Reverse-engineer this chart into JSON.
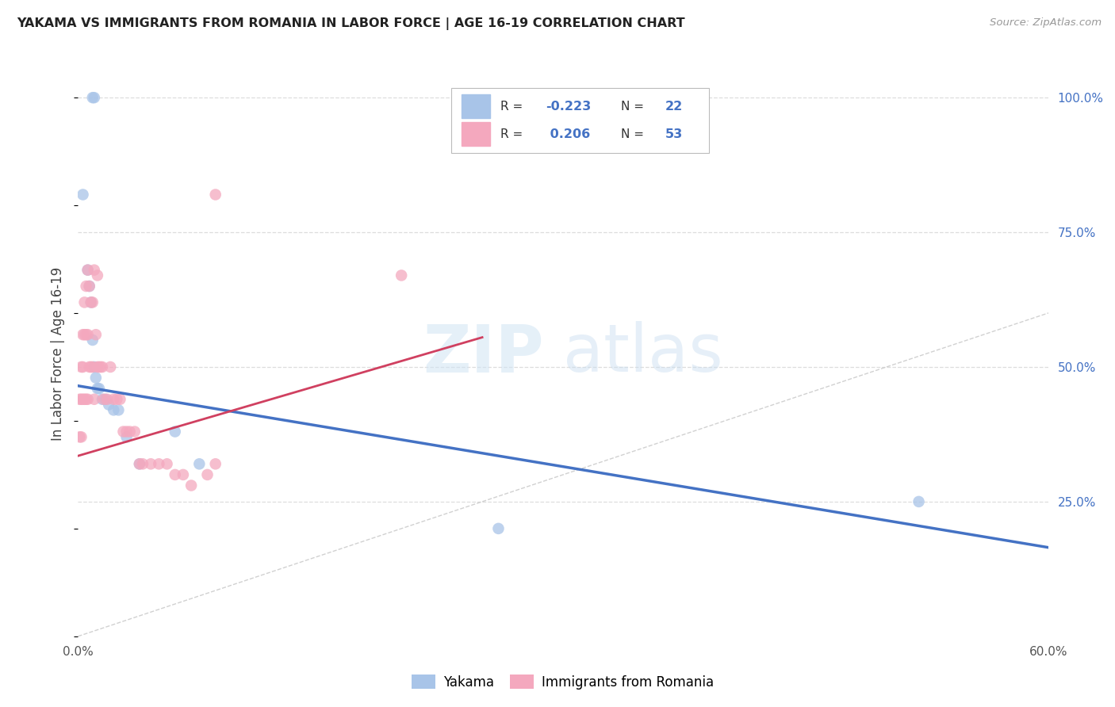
{
  "title": "YAKAMA VS IMMIGRANTS FROM ROMANIA IN LABOR FORCE | AGE 16-19 CORRELATION CHART",
  "source": "Source: ZipAtlas.com",
  "ylabel": "In Labor Force | Age 16-19",
  "xlim": [
    0.0,
    0.6
  ],
  "ylim": [
    0.0,
    1.05
  ],
  "yakama_color": "#a8c4e8",
  "romania_color": "#f4a8be",
  "trendline_yakama_color": "#4472c4",
  "trendline_romania_color": "#d04060",
  "diagonal_color": "#cccccc",
  "background_color": "#ffffff",
  "grid_color": "#dddddd",
  "legend_r1": "-0.223",
  "legend_n1": "22",
  "legend_r2": "0.206",
  "legend_n2": "53",
  "legend_color": "#4472c4",
  "legend_label_color": "#333333",
  "watermark_zip_color": "#c8dcf0",
  "watermark_atlas_color": "#c0d8ec",
  "yakama_x": [
    0.009,
    0.01,
    0.003,
    0.006,
    0.007,
    0.008,
    0.009,
    0.01,
    0.011,
    0.012,
    0.013,
    0.015,
    0.017,
    0.019,
    0.022,
    0.025,
    0.03,
    0.038,
    0.06,
    0.075,
    0.26,
    0.52
  ],
  "yakama_y": [
    1.0,
    1.0,
    0.82,
    0.68,
    0.65,
    0.62,
    0.55,
    0.5,
    0.48,
    0.46,
    0.46,
    0.44,
    0.44,
    0.43,
    0.42,
    0.42,
    0.37,
    0.32,
    0.38,
    0.32,
    0.2,
    0.25
  ],
  "romania_x": [
    0.001,
    0.001,
    0.002,
    0.002,
    0.002,
    0.003,
    0.003,
    0.003,
    0.004,
    0.004,
    0.004,
    0.005,
    0.005,
    0.005,
    0.006,
    0.006,
    0.006,
    0.007,
    0.007,
    0.008,
    0.008,
    0.009,
    0.009,
    0.01,
    0.01,
    0.011,
    0.012,
    0.013,
    0.014,
    0.015,
    0.016,
    0.018,
    0.02,
    0.022,
    0.024,
    0.026,
    0.028,
    0.03,
    0.032,
    0.035,
    0.038,
    0.04,
    0.045,
    0.05,
    0.055,
    0.06,
    0.065,
    0.07,
    0.08,
    0.085,
    0.085,
    0.012,
    0.2
  ],
  "romania_y": [
    0.44,
    0.37,
    0.5,
    0.44,
    0.37,
    0.56,
    0.5,
    0.44,
    0.62,
    0.56,
    0.44,
    0.65,
    0.56,
    0.44,
    0.68,
    0.56,
    0.44,
    0.65,
    0.5,
    0.62,
    0.5,
    0.62,
    0.5,
    0.68,
    0.44,
    0.56,
    0.5,
    0.5,
    0.5,
    0.5,
    0.44,
    0.44,
    0.5,
    0.44,
    0.44,
    0.44,
    0.38,
    0.38,
    0.38,
    0.38,
    0.32,
    0.32,
    0.32,
    0.32,
    0.32,
    0.3,
    0.3,
    0.28,
    0.3,
    0.82,
    0.32,
    0.67,
    0.67
  ],
  "blue_trend_x0": 0.0,
  "blue_trend_x1": 0.6,
  "blue_trend_y0": 0.465,
  "blue_trend_y1": 0.165,
  "pink_trend_x0": 0.0,
  "pink_trend_x1": 0.25,
  "pink_trend_y0": 0.335,
  "pink_trend_y1": 0.555
}
